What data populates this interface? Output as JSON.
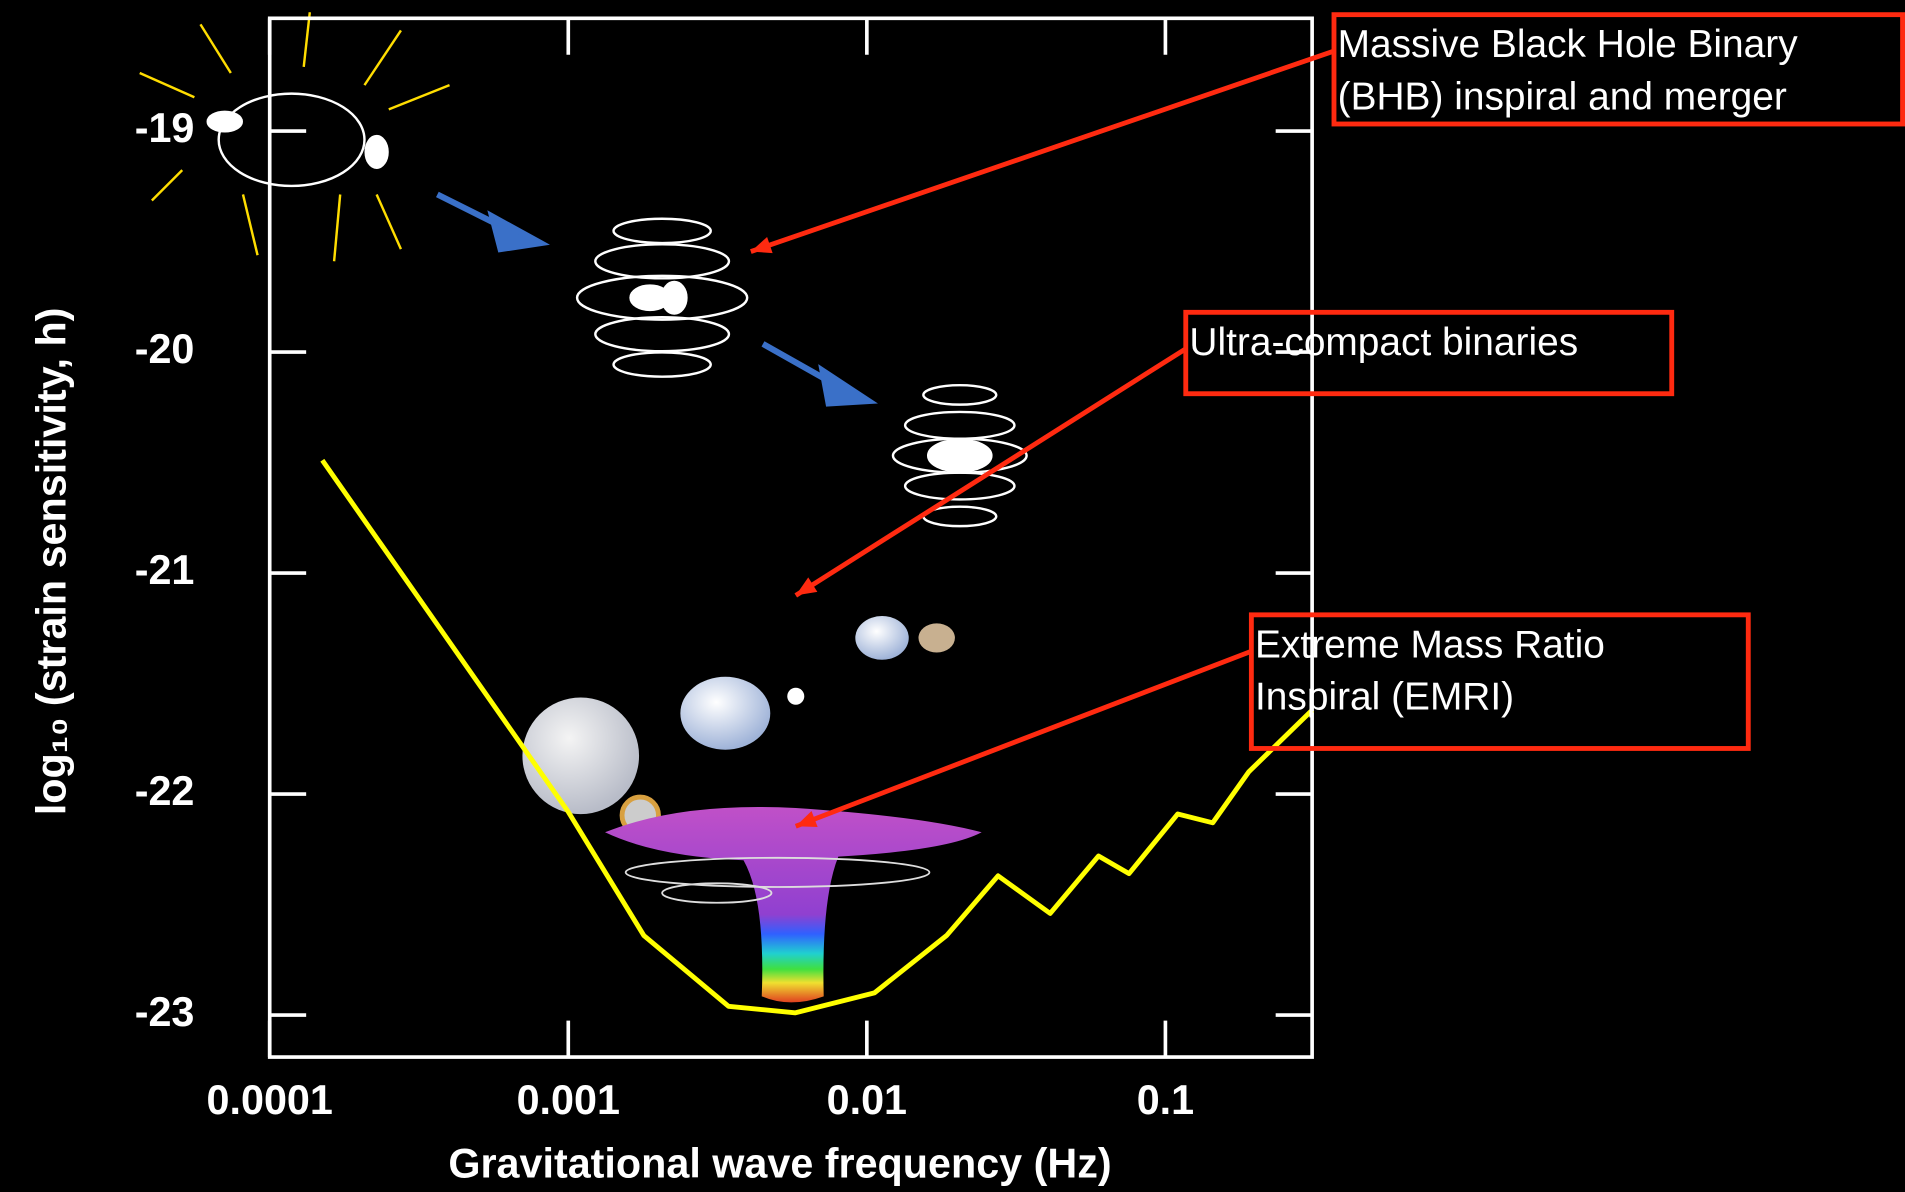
{
  "chart_data": {
    "type": "line",
    "xlabel": "Gravitational wave frequency (Hz)",
    "ylabel": "log₁₀ (strain sensitivity, h)",
    "x": [
      0.00015,
      0.001,
      0.00179,
      0.00344,
      0.00575,
      0.0106,
      0.0185,
      0.0275,
      0.0411,
      0.0597,
      0.0755,
      0.11,
      0.144,
      0.19,
      0.31
    ],
    "values": [
      -20.49,
      -22.08,
      -22.64,
      -22.96,
      -22.99,
      -22.9,
      -22.64,
      -22.37,
      -22.54,
      -22.28,
      -22.36,
      -22.09,
      -22.13,
      -21.9,
      -21.62
    ],
    "color": "#ffff00",
    "xscale": "log",
    "xlim": [
      0.0001,
      0.31
    ],
    "xticks": [
      0.0001,
      0.001,
      0.01,
      0.1
    ],
    "ylim": [
      -23.19,
      -18.49
    ],
    "yticks": [
      -19,
      -20,
      -21,
      -22,
      -23
    ],
    "annotations": [
      [
        "Massive Black Hole Binary",
        "(BHB) inspiral and merger"
      ],
      [
        "Ultra-compact binaries"
      ],
      [
        "Extreme Mass Ratio",
        "Inspiral (EMRI)"
      ]
    ]
  }
}
